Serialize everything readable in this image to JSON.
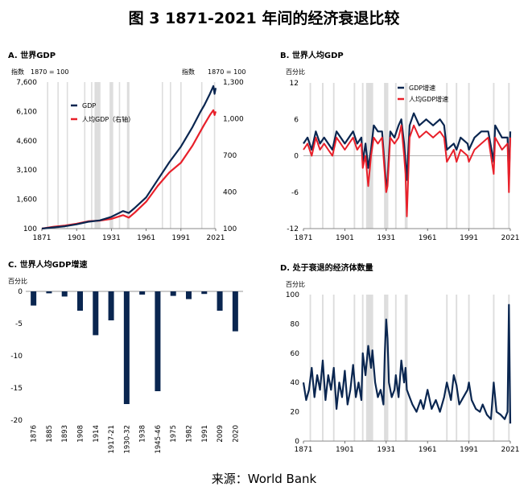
{
  "figure_title": "图 3 1871-2021 年间的经济衰退比较",
  "source": "来源：World Bank",
  "colors": {
    "navy": "#0a2650",
    "red": "#e8202a",
    "recession": "#d9d9d9",
    "axis": "#888888"
  },
  "chart_data": [
    {
      "type": "line",
      "panel": "A",
      "title": "A.  世界GDP",
      "ylabel_left": "指数",
      "ylabel_right": "指数",
      "note_left": "1870 = 100",
      "note_right": "1870 = 100",
      "x_ticks": [
        "1871",
        "1901",
        "1931",
        "1961",
        "1991",
        "2021"
      ],
      "y_left_ticks": [
        "7,600",
        "6,100",
        "4,600",
        "3,100",
        "1,600",
        "100"
      ],
      "y_right_ticks": [
        "1,300",
        "1,000",
        "700",
        "400",
        "100"
      ],
      "ylim_left": [
        100,
        7600
      ],
      "ylim_right": [
        100,
        1300
      ],
      "legend_position": "top-left",
      "series": [
        {
          "name": "GDP",
          "axis": "left",
          "x": [
            1871,
            1881,
            1891,
            1901,
            1911,
            1921,
            1931,
            1941,
            1946,
            1951,
            1961,
            1971,
            1981,
            1991,
            2001,
            2008,
            2011,
            2016,
            2019,
            2020,
            2021
          ],
          "y": [
            100,
            160,
            220,
            320,
            450,
            520,
            700,
            1000,
            900,
            1150,
            1700,
            2600,
            3500,
            4300,
            5300,
            6100,
            6400,
            7000,
            7400,
            7000,
            7300
          ]
        },
        {
          "name": "人均GDP（右轴）",
          "axis": "right",
          "x": [
            1871,
            1881,
            1891,
            1901,
            1911,
            1921,
            1931,
            1941,
            1946,
            1951,
            1961,
            1971,
            1981,
            1991,
            2001,
            2008,
            2011,
            2016,
            2019,
            2020,
            2021
          ],
          "y": [
            100,
            115,
            125,
            140,
            160,
            165,
            180,
            210,
            190,
            230,
            320,
            450,
            560,
            640,
            780,
            900,
            950,
            1030,
            1070,
            1030,
            1060
          ]
        }
      ]
    },
    {
      "type": "line",
      "panel": "B",
      "title": "B.  世界人均GDP",
      "ylabel": "百分比",
      "x_ticks": [
        "1871",
        "1901",
        "1931",
        "1961",
        "1991",
        "2021"
      ],
      "y_ticks": [
        "12",
        "6",
        "0",
        "-6",
        "-12"
      ],
      "ylim": [
        -12,
        12
      ],
      "legend_position": "top-center",
      "series": [
        {
          "name": "GDP增速",
          "x": [
            1871,
            1874,
            1877,
            1880,
            1883,
            1886,
            1889,
            1892,
            1895,
            1898,
            1901,
            1904,
            1907,
            1910,
            1913,
            1914,
            1916,
            1918,
            1920,
            1922,
            1925,
            1928,
            1930,
            1931,
            1932,
            1934,
            1937,
            1940,
            1942,
            1944,
            1945,
            1946,
            1948,
            1951,
            1955,
            1960,
            1965,
            1970,
            1973,
            1975,
            1980,
            1982,
            1985,
            1990,
            1991,
            1995,
            2000,
            2005,
            2009,
            2010,
            2015,
            2019,
            2020,
            2021
          ],
          "y": [
            2,
            3,
            1,
            4,
            2,
            3,
            2,
            1,
            4,
            3,
            2,
            3,
            4,
            2,
            3,
            -1,
            2,
            -2,
            1,
            5,
            4,
            4,
            -2,
            -5,
            -4,
            4,
            3,
            5,
            6,
            2,
            -1,
            -4,
            5,
            7,
            5,
            6,
            5,
            6,
            5,
            1,
            2,
            1,
            3,
            2,
            1,
            3,
            4,
            4,
            -1,
            5,
            3,
            3,
            -4,
            4
          ]
        },
        {
          "name": "人均GDP增速",
          "x": [
            1871,
            1874,
            1877,
            1880,
            1883,
            1886,
            1889,
            1892,
            1895,
            1898,
            1901,
            1904,
            1907,
            1910,
            1913,
            1914,
            1916,
            1918,
            1920,
            1922,
            1925,
            1928,
            1930,
            1931,
            1932,
            1934,
            1937,
            1940,
            1942,
            1944,
            1945,
            1946,
            1948,
            1951,
            1955,
            1960,
            1965,
            1970,
            1973,
            1975,
            1980,
            1982,
            1985,
            1990,
            1991,
            1995,
            2000,
            2005,
            2009,
            2010,
            2015,
            2019,
            2020,
            2021
          ],
          "y": [
            1,
            2,
            0,
            3,
            1,
            2,
            1,
            0,
            3,
            2,
            1,
            2,
            3,
            1,
            2,
            -2,
            0,
            -5,
            0,
            3,
            2,
            3,
            -3,
            -6,
            -5,
            3,
            2,
            3,
            5,
            0,
            -3,
            -10,
            3,
            5,
            3,
            4,
            3,
            4,
            3,
            -1,
            1,
            -1,
            1,
            0,
            -1,
            1,
            2,
            3,
            -3,
            3,
            1,
            2,
            -6,
            3
          ]
        }
      ]
    },
    {
      "type": "bar",
      "panel": "C",
      "title": "C.  世界人均GDP增速",
      "ylabel": "百分比",
      "categories": [
        "1876",
        "1885",
        "1893",
        "1908",
        "1914",
        "1917-21",
        "1930-32",
        "1938",
        "1945-46",
        "1975",
        "1982",
        "1991",
        "2009",
        "2020"
      ],
      "values": [
        -2.2,
        -0.3,
        -0.8,
        -3.0,
        -6.8,
        -4.5,
        -17.5,
        -0.5,
        -15.5,
        -0.7,
        -1.2,
        -0.4,
        -3.0,
        -6.2
      ],
      "y_ticks": [
        "0",
        "-5",
        "-10",
        "-15",
        "-20"
      ],
      "ylim": [
        -20,
        0
      ]
    },
    {
      "type": "line",
      "panel": "D",
      "title": "D.  处于衰退的经济体数量",
      "ylabel": "百分比",
      "x_ticks": [
        "1871",
        "1901",
        "1931",
        "1961",
        "1991",
        "2021"
      ],
      "y_ticks": [
        "100",
        "80",
        "60",
        "40",
        "20",
        "0"
      ],
      "ylim": [
        0,
        100
      ],
      "series": [
        {
          "name": "",
          "x": [
            1871,
            1873,
            1875,
            1877,
            1879,
            1881,
            1883,
            1885,
            1887,
            1889,
            1891,
            1893,
            1895,
            1897,
            1899,
            1901,
            1903,
            1905,
            1907,
            1909,
            1911,
            1913,
            1914,
            1916,
            1918,
            1920,
            1921,
            1923,
            1925,
            1927,
            1929,
            1930,
            1931,
            1932,
            1933,
            1935,
            1937,
            1938,
            1940,
            1942,
            1944,
            1945,
            1946,
            1948,
            1950,
            1953,
            1956,
            1958,
            1961,
            1964,
            1967,
            1970,
            1973,
            1975,
            1978,
            1980,
            1982,
            1984,
            1987,
            1990,
            1991,
            1993,
            1996,
            1999,
            2001,
            2004,
            2007,
            2009,
            2011,
            2014,
            2017,
            2019,
            2020,
            2021
          ],
          "y": [
            40,
            28,
            35,
            50,
            30,
            45,
            35,
            55,
            28,
            45,
            35,
            50,
            22,
            40,
            30,
            48,
            25,
            35,
            52,
            30,
            40,
            28,
            60,
            45,
            65,
            50,
            62,
            40,
            30,
            35,
            25,
            60,
            83,
            70,
            40,
            30,
            35,
            45,
            30,
            55,
            40,
            50,
            35,
            30,
            25,
            20,
            28,
            22,
            35,
            22,
            28,
            20,
            30,
            40,
            28,
            45,
            38,
            25,
            30,
            35,
            40,
            28,
            22,
            20,
            25,
            18,
            15,
            40,
            20,
            18,
            15,
            20,
            93,
            12
          ]
        }
      ]
    }
  ],
  "recession_years": [
    1876,
    1885,
    1893,
    1908,
    1914,
    1917,
    1918,
    1919,
    1920,
    1921,
    1930,
    1931,
    1932,
    1938,
    1945,
    1946,
    1975,
    1982,
    1991,
    2009,
    2020
  ]
}
